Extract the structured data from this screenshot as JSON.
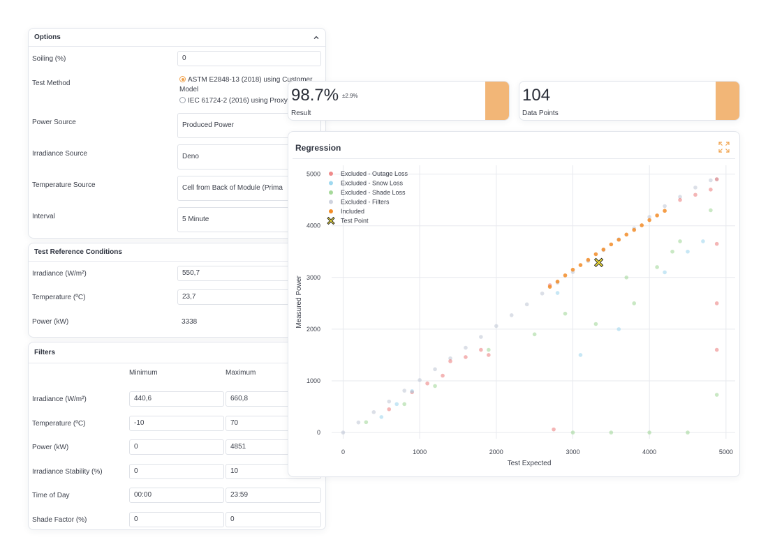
{
  "options": {
    "title": "Options",
    "soiling": {
      "label": "Soiling (%)",
      "value": "0"
    },
    "test_method": {
      "label": "Test Method",
      "option1": "ASTM E2848-13 (2018) using Customer Model",
      "option2": "IEC 61724-2 (2016) using Proxy"
    },
    "power_source": {
      "label": "Power Source",
      "value": "Produced Power"
    },
    "irradiance_source": {
      "label": "Irradiance Source",
      "value": "Deno"
    },
    "temperature_source": {
      "label": "Temperature Source",
      "value": "Cell from Back of Module (Prima"
    },
    "interval": {
      "label": "Interval",
      "value": "5 Minute"
    }
  },
  "trc": {
    "title": "Test Reference Conditions",
    "irradiance": {
      "label": "Irradiance (W/m²)",
      "value": "550,7"
    },
    "temperature": {
      "label": "Temperature (ºC)",
      "value": "23,7"
    },
    "power": {
      "label": "Power (kW)",
      "value": "3338"
    }
  },
  "filters": {
    "title": "Filters",
    "col_min": "Minimum",
    "col_max": "Maximum",
    "rows": [
      {
        "label": "Irradiance (W/m²)",
        "min": "440,6",
        "max": "660,8"
      },
      {
        "label": "Temperature (ºC)",
        "min": "-10",
        "max": "70"
      },
      {
        "label": "Power (kW)",
        "min": "0",
        "max": "4851"
      },
      {
        "label": "Irradiance Stability (%)",
        "min": "0",
        "max": "10"
      },
      {
        "label": "Time of Day",
        "min": "00:00",
        "max": "23:59"
      },
      {
        "label": "Shade Factor (%)",
        "min": "0",
        "max": "0"
      }
    ]
  },
  "result_card": {
    "value": "98.7%",
    "uncertainty": "±2.9%",
    "caption": "Result",
    "accent": "#f2b677"
  },
  "points_card": {
    "value": "104",
    "caption": "Data Points",
    "accent": "#f2b677"
  },
  "chart_data": {
    "type": "scatter",
    "title": "Regression",
    "xlabel": "Test Expected",
    "ylabel": "Measured Power",
    "xlim": [
      -150,
      5120
    ],
    "ylim": [
      -120,
      5170
    ],
    "xticks": [
      0,
      1000,
      2000,
      3000,
      4000,
      5000
    ],
    "yticks": [
      0,
      1000,
      2000,
      3000,
      4000,
      5000
    ],
    "grid": true,
    "legend_position": "top-left",
    "legend": [
      {
        "name": "Excluded - Outage Loss",
        "color": "#ef8a8a"
      },
      {
        "name": "Excluded - Snow Loss",
        "color": "#9fd8ef"
      },
      {
        "name": "Excluded - Shade Loss",
        "color": "#a6d99a"
      },
      {
        "name": "Excluded - Filters",
        "color": "#cfd3de"
      },
      {
        "name": "Included",
        "color": "#f28c28"
      },
      {
        "name": "Test Point",
        "color": "#f3e13a"
      }
    ],
    "series": [
      {
        "name": "Excluded - Filters",
        "color": "#b8bfcf",
        "x": [
          0,
          200,
          400,
          600,
          800,
          1000,
          1200,
          1400,
          1600,
          1800,
          2000,
          2200,
          2400,
          2600,
          2800,
          3000,
          3200,
          3400,
          3600,
          3800,
          4000,
          4200,
          4400,
          4600,
          4800,
          4880
        ],
        "y": [
          0,
          195,
          395,
          600,
          810,
          1015,
          1225,
          1435,
          1640,
          1850,
          2060,
          2270,
          2480,
          2690,
          2900,
          3105,
          3320,
          3530,
          3740,
          3950,
          4170,
          4380,
          4560,
          4740,
          4880,
          4900
        ]
      },
      {
        "name": "Excluded - Outage Loss",
        "color": "#ea6b6b",
        "x": [
          600,
          900,
          1100,
          1300,
          1400,
          1600,
          1800,
          1900,
          2700,
          4400,
          4600,
          4800,
          4880,
          4880,
          4880,
          4880,
          2750
        ],
        "y": [
          450,
          780,
          950,
          1100,
          1380,
          1460,
          1600,
          1500,
          2850,
          4500,
          4600,
          4700,
          3650,
          2500,
          1600,
          4900,
          60
        ]
      },
      {
        "name": "Excluded - Snow Loss",
        "color": "#8fd0ec",
        "x": [
          500,
          700,
          900,
          2800,
          3100,
          3600,
          4200,
          4500,
          4700
        ],
        "y": [
          300,
          550,
          800,
          2700,
          1500,
          2000,
          3100,
          3500,
          3700
        ]
      },
      {
        "name": "Excluded - Shade Loss",
        "color": "#93d18a",
        "x": [
          300,
          800,
          1200,
          1900,
          2500,
          2900,
          3300,
          3800,
          4100,
          4400,
          4800,
          3000,
          3500,
          4000,
          4500,
          4880,
          3700,
          4300
        ],
        "y": [
          200,
          550,
          900,
          1600,
          1900,
          2300,
          2100,
          2500,
          3200,
          3700,
          4300,
          0,
          0,
          0,
          0,
          730,
          3000,
          3500
        ]
      },
      {
        "name": "Included",
        "color": "#f28c28",
        "x": [
          2700,
          2800,
          2900,
          3000,
          3100,
          3200,
          3300,
          3400,
          3500,
          3600,
          3700,
          3800,
          3900,
          4000,
          4100,
          4200
        ],
        "y": [
          2820,
          2920,
          3040,
          3150,
          3240,
          3340,
          3450,
          3540,
          3640,
          3730,
          3830,
          3920,
          4010,
          4110,
          4200,
          4290
        ]
      },
      {
        "name": "Test Point",
        "color": "#f3e13a",
        "x": [
          3338
        ],
        "y": [
          3290
        ]
      }
    ]
  }
}
